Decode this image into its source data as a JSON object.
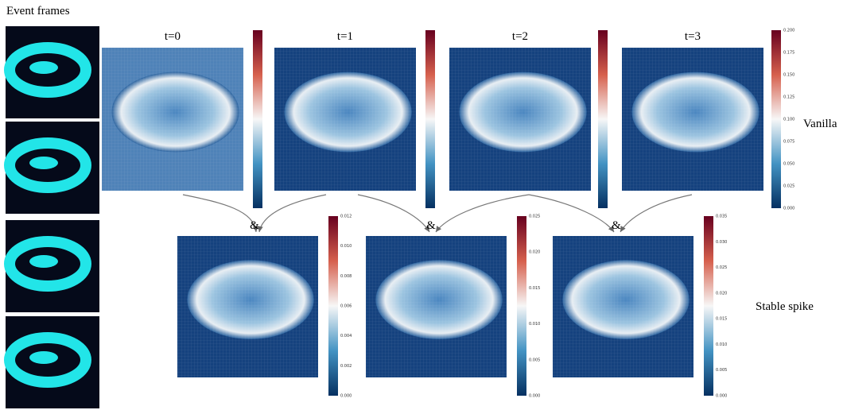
{
  "figure": {
    "event_frames_label": "Event frames",
    "vanilla": {
      "label": "Vanilla",
      "panels": [
        "t=0",
        "t=1",
        "t=2",
        "t=3"
      ],
      "colorbar_t3": [
        "0.200",
        "0.175",
        "0.150",
        "0.125",
        "0.100",
        "0.075",
        "0.050",
        "0.025",
        "0.000"
      ]
    },
    "stable": {
      "label": "Stable spike",
      "operators": [
        "&",
        "&",
        "&"
      ],
      "colorbars": [
        [
          "0.012",
          "0.010",
          "0.008",
          "0.006",
          "0.004",
          "0.002",
          "0.000"
        ],
        [
          "0.025",
          "0.020",
          "0.015",
          "0.010",
          "0.005",
          "0.000"
        ],
        [
          "0.035",
          "0.030",
          "0.025",
          "0.020",
          "0.015",
          "0.010",
          "0.005",
          "0.000"
        ]
      ]
    }
  }
}
